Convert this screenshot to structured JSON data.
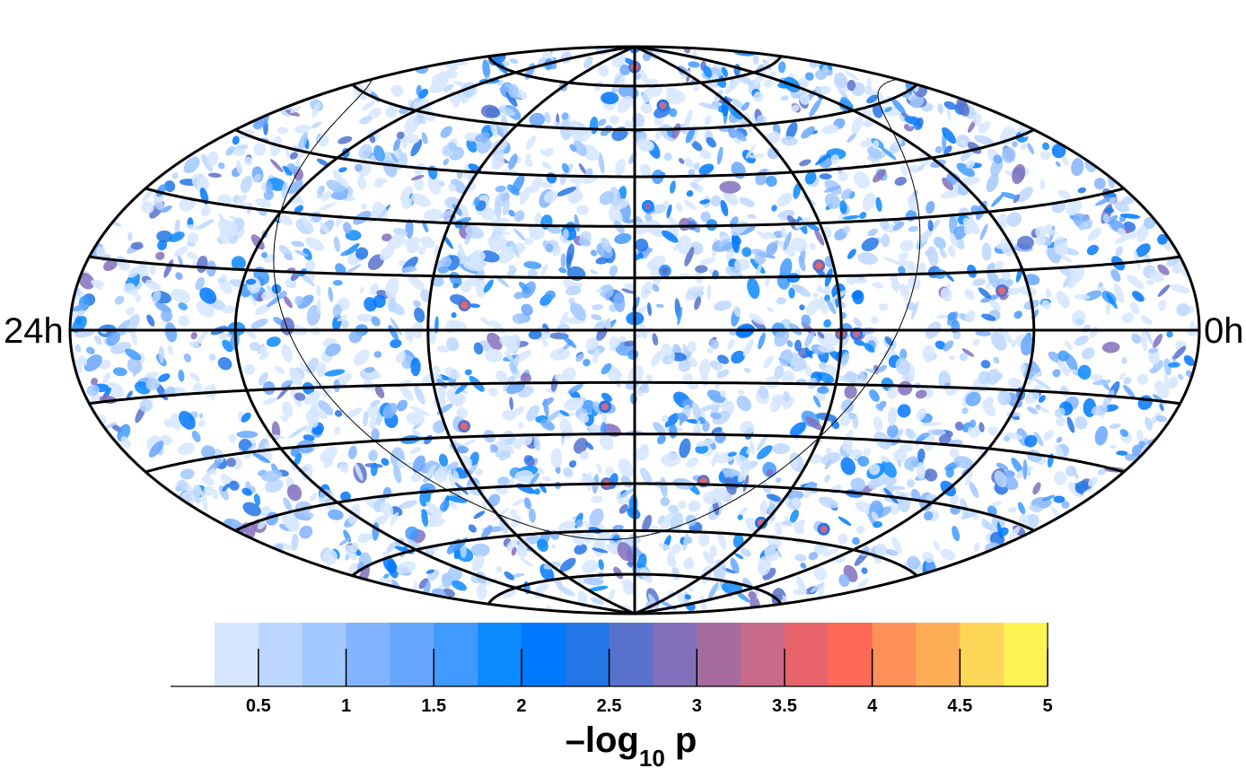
{
  "chart_data": {
    "type": "heatmap",
    "projection": "hammer-aitoff",
    "ra_label_left": "24h",
    "ra_label_right": "0h",
    "grid": true,
    "meridian_step_hours": 4,
    "parallel_step_deg": 15,
    "galactic_plane": true,
    "colorbar": {
      "title_main": "–log",
      "title_sub": "10",
      "title_tail": " p",
      "range": [
        0.25,
        5.0
      ],
      "bin_width": 0.25,
      "colors": [
        "#d6e6ff",
        "#bcd7ff",
        "#a2c8ff",
        "#82b4ff",
        "#66a6ff",
        "#409aff",
        "#0c8aff",
        "#0078ff",
        "#2376e6",
        "#5872cc",
        "#8270bc",
        "#a76c9f",
        "#c86a8a",
        "#e6646a",
        "#ff6a57",
        "#ff9059",
        "#ffae57",
        "#ffd758",
        "#fff252"
      ],
      "ticks": [
        0.5,
        1,
        1.5,
        2,
        2.5,
        3,
        3.5,
        4,
        4.5,
        5
      ],
      "tick_labels": [
        "0.5",
        "1",
        "1.5",
        "2",
        "2.5",
        "3",
        "3.5",
        "4",
        "4.5",
        "5"
      ]
    },
    "hotspots": [
      {
        "ra_h": 12.0,
        "dec": 82,
        "value": 3.6
      },
      {
        "ra_h": 10.8,
        "dec": 68,
        "value": 3.4
      },
      {
        "ra_h": 8.3,
        "dec": 18,
        "value": 3.7
      },
      {
        "ra_h": 4.6,
        "dec": 10,
        "value": 3.5
      },
      {
        "ra_h": 8.0,
        "dec": -1,
        "value": 3.6
      },
      {
        "ra_h": 7.7,
        "dec": -1,
        "value": 3.3
      },
      {
        "ra_h": 15.3,
        "dec": 7,
        "value": 3.6
      },
      {
        "ra_h": 15.6,
        "dec": -27,
        "value": 3.5
      },
      {
        "ra_h": 12.6,
        "dec": -22,
        "value": 3.4
      },
      {
        "ra_h": 12.7,
        "dec": -45,
        "value": 3.6
      },
      {
        "ra_h": 10.3,
        "dec": -44,
        "value": 3.5
      },
      {
        "ra_h": 8.1,
        "dec": -56,
        "value": 3.4
      },
      {
        "ra_h": 6.0,
        "dec": -56,
        "value": 3.4
      },
      {
        "ra_h": 11.7,
        "dec": 36,
        "value": 2.9
      },
      {
        "ra_h": 11.4,
        "dec": 17,
        "value": 2.7
      }
    ]
  }
}
